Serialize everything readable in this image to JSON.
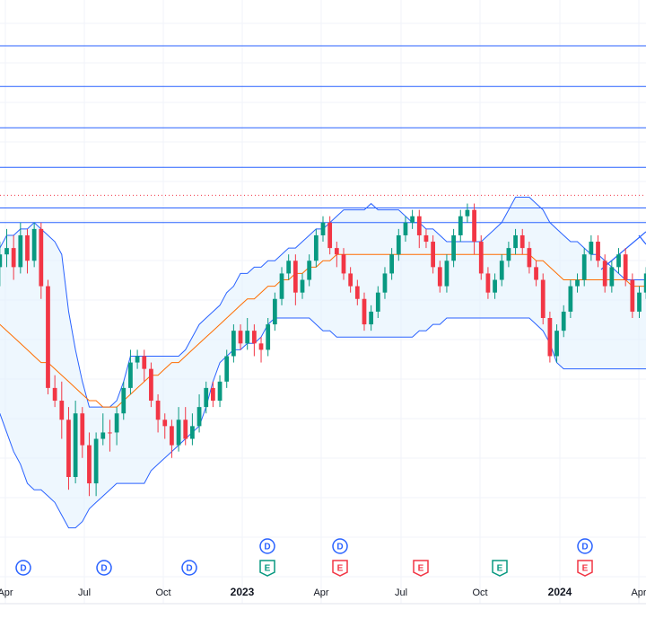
{
  "colors": {
    "up": "#089981",
    "down": "#f23645",
    "band_line": "#2962ff",
    "band_fill": "#e3f2fd",
    "basis": "#ff6d00",
    "level_line": "#2962ff",
    "dotted_level": "#f23645",
    "grid": "#f0f3fa",
    "text": "#131722",
    "dividend": "#2962ff",
    "earnings_beat": "#089981",
    "earnings_miss": "#f23645"
  },
  "chart_data": {
    "type": "candlestick",
    "interval": "weekly",
    "x_axis_labels": [
      "Apr",
      "Jul",
      "Oct",
      "2023",
      "Apr",
      "Jul",
      "Oct",
      "2024",
      "Apr"
    ],
    "bold_labels": [
      "2023",
      "2024"
    ],
    "horizontal_levels": [
      0.072,
      0.136,
      0.201,
      0.263,
      0.327,
      0.35
    ],
    "dotted_level": 0.307,
    "ohlc_note": "values in relative units (0 = top of plot, 1 = bottom)",
    "ohlc": [
      [
        0.42,
        0.4,
        0.45,
        0.38
      ],
      [
        0.4,
        0.39,
        0.42,
        0.36
      ],
      [
        0.39,
        0.42,
        0.44,
        0.37
      ],
      [
        0.42,
        0.37,
        0.43,
        0.35
      ],
      [
        0.37,
        0.41,
        0.43,
        0.36
      ],
      [
        0.41,
        0.36,
        0.42,
        0.35
      ],
      [
        0.36,
        0.45,
        0.47,
        0.35
      ],
      [
        0.45,
        0.61,
        0.62,
        0.44
      ],
      [
        0.61,
        0.63,
        0.64,
        0.59
      ],
      [
        0.63,
        0.66,
        0.69,
        0.6
      ],
      [
        0.66,
        0.75,
        0.77,
        0.64
      ],
      [
        0.75,
        0.65,
        0.76,
        0.63
      ],
      [
        0.65,
        0.7,
        0.72,
        0.64
      ],
      [
        0.7,
        0.76,
        0.78,
        0.68
      ],
      [
        0.76,
        0.69,
        0.78,
        0.68
      ],
      [
        0.69,
        0.68,
        0.7,
        0.65
      ],
      [
        0.68,
        0.68,
        0.71,
        0.66
      ],
      [
        0.68,
        0.65,
        0.7,
        0.64
      ],
      [
        0.65,
        0.61,
        0.66,
        0.6
      ],
      [
        0.61,
        0.57,
        0.62,
        0.55
      ],
      [
        0.57,
        0.56,
        0.58,
        0.55
      ],
      [
        0.56,
        0.58,
        0.6,
        0.55
      ],
      [
        0.58,
        0.63,
        0.64,
        0.57
      ],
      [
        0.63,
        0.66,
        0.68,
        0.62
      ],
      [
        0.66,
        0.67,
        0.69,
        0.65
      ],
      [
        0.67,
        0.7,
        0.72,
        0.66
      ],
      [
        0.7,
        0.66,
        0.71,
        0.64
      ],
      [
        0.66,
        0.69,
        0.7,
        0.64
      ],
      [
        0.69,
        0.67,
        0.7,
        0.65
      ],
      [
        0.67,
        0.64,
        0.68,
        0.62
      ],
      [
        0.64,
        0.61,
        0.65,
        0.6
      ],
      [
        0.61,
        0.63,
        0.64,
        0.6
      ],
      [
        0.63,
        0.6,
        0.64,
        0.59
      ],
      [
        0.6,
        0.56,
        0.61,
        0.55
      ],
      [
        0.56,
        0.52,
        0.57,
        0.51
      ],
      [
        0.52,
        0.54,
        0.55,
        0.51
      ],
      [
        0.54,
        0.52,
        0.55,
        0.5
      ],
      [
        0.52,
        0.54,
        0.56,
        0.51
      ],
      [
        0.54,
        0.55,
        0.57,
        0.53
      ],
      [
        0.55,
        0.51,
        0.56,
        0.5
      ],
      [
        0.51,
        0.47,
        0.52,
        0.46
      ],
      [
        0.47,
        0.43,
        0.48,
        0.42
      ],
      [
        0.43,
        0.41,
        0.44,
        0.4
      ],
      [
        0.41,
        0.46,
        0.48,
        0.4
      ],
      [
        0.46,
        0.44,
        0.47,
        0.43
      ],
      [
        0.44,
        0.41,
        0.45,
        0.4
      ],
      [
        0.41,
        0.37,
        0.42,
        0.36
      ],
      [
        0.37,
        0.35,
        0.38,
        0.34
      ],
      [
        0.35,
        0.39,
        0.4,
        0.34
      ],
      [
        0.39,
        0.4,
        0.42,
        0.38
      ],
      [
        0.4,
        0.43,
        0.44,
        0.39
      ],
      [
        0.43,
        0.45,
        0.46,
        0.42
      ],
      [
        0.45,
        0.47,
        0.48,
        0.44
      ],
      [
        0.47,
        0.51,
        0.52,
        0.46
      ],
      [
        0.51,
        0.49,
        0.52,
        0.48
      ],
      [
        0.49,
        0.46,
        0.5,
        0.45
      ],
      [
        0.46,
        0.43,
        0.47,
        0.42
      ],
      [
        0.43,
        0.4,
        0.44,
        0.39
      ],
      [
        0.4,
        0.37,
        0.41,
        0.36
      ],
      [
        0.37,
        0.35,
        0.38,
        0.34
      ],
      [
        0.35,
        0.34,
        0.36,
        0.33
      ],
      [
        0.34,
        0.37,
        0.39,
        0.33
      ],
      [
        0.37,
        0.38,
        0.39,
        0.36
      ],
      [
        0.38,
        0.42,
        0.43,
        0.37
      ],
      [
        0.42,
        0.45,
        0.46,
        0.41
      ],
      [
        0.45,
        0.41,
        0.46,
        0.4
      ],
      [
        0.41,
        0.37,
        0.42,
        0.36
      ],
      [
        0.37,
        0.34,
        0.38,
        0.33
      ],
      [
        0.34,
        0.33,
        0.35,
        0.32
      ],
      [
        0.33,
        0.38,
        0.4,
        0.32
      ],
      [
        0.38,
        0.43,
        0.44,
        0.37
      ],
      [
        0.43,
        0.46,
        0.47,
        0.42
      ],
      [
        0.46,
        0.44,
        0.47,
        0.43
      ],
      [
        0.44,
        0.41,
        0.45,
        0.4
      ],
      [
        0.41,
        0.39,
        0.42,
        0.38
      ],
      [
        0.39,
        0.37,
        0.4,
        0.36
      ],
      [
        0.37,
        0.39,
        0.4,
        0.36
      ],
      [
        0.39,
        0.42,
        0.43,
        0.38
      ],
      [
        0.42,
        0.44,
        0.45,
        0.41
      ],
      [
        0.44,
        0.5,
        0.51,
        0.43
      ],
      [
        0.5,
        0.56,
        0.57,
        0.49
      ],
      [
        0.56,
        0.52,
        0.57,
        0.51
      ],
      [
        0.52,
        0.49,
        0.53,
        0.48
      ],
      [
        0.49,
        0.45,
        0.5,
        0.44
      ],
      [
        0.45,
        0.44,
        0.46,
        0.43
      ],
      [
        0.44,
        0.4,
        0.45,
        0.39
      ],
      [
        0.4,
        0.38,
        0.41,
        0.37
      ],
      [
        0.38,
        0.41,
        0.42,
        0.37
      ],
      [
        0.41,
        0.45,
        0.46,
        0.4
      ],
      [
        0.45,
        0.42,
        0.46,
        0.41
      ],
      [
        0.42,
        0.4,
        0.43,
        0.39
      ],
      [
        0.4,
        0.44,
        0.45,
        0.39
      ],
      [
        0.44,
        0.49,
        0.5,
        0.43
      ],
      [
        0.49,
        0.46,
        0.5,
        0.45
      ],
      [
        0.46,
        0.43,
        0.47,
        0.42
      ]
    ],
    "upper_band": [
      0.39,
      0.37,
      0.37,
      0.36,
      0.36,
      0.35,
      0.36,
      0.37,
      0.38,
      0.4,
      0.49,
      0.55,
      0.6,
      0.64,
      0.64,
      0.64,
      0.64,
      0.63,
      0.6,
      0.56,
      0.56,
      0.56,
      0.56,
      0.56,
      0.56,
      0.56,
      0.56,
      0.55,
      0.53,
      0.51,
      0.5,
      0.49,
      0.48,
      0.46,
      0.45,
      0.43,
      0.43,
      0.42,
      0.42,
      0.41,
      0.41,
      0.4,
      0.39,
      0.39,
      0.38,
      0.37,
      0.36,
      0.36,
      0.35,
      0.34,
      0.33,
      0.33,
      0.33,
      0.33,
      0.32,
      0.33,
      0.33,
      0.33,
      0.33,
      0.34,
      0.35,
      0.35,
      0.36,
      0.36,
      0.37,
      0.38,
      0.38,
      0.38,
      0.38,
      0.38,
      0.38,
      0.37,
      0.36,
      0.35,
      0.33,
      0.31,
      0.31,
      0.31,
      0.32,
      0.33,
      0.35,
      0.36,
      0.37,
      0.38,
      0.38,
      0.39,
      0.4,
      0.4,
      0.41,
      0.42,
      0.43,
      0.44,
      0.44,
      0.44,
      0.44
    ],
    "lower_band": [
      0.65,
      0.68,
      0.71,
      0.73,
      0.76,
      0.77,
      0.77,
      0.78,
      0.79,
      0.81,
      0.83,
      0.83,
      0.82,
      0.8,
      0.79,
      0.78,
      0.77,
      0.76,
      0.76,
      0.76,
      0.76,
      0.76,
      0.74,
      0.73,
      0.72,
      0.71,
      0.7,
      0.69,
      0.68,
      0.67,
      0.64,
      0.6,
      0.57,
      0.56,
      0.55,
      0.55,
      0.54,
      0.54,
      0.53,
      0.51,
      0.5,
      0.5,
      0.5,
      0.5,
      0.5,
      0.5,
      0.51,
      0.52,
      0.52,
      0.53,
      0.53,
      0.53,
      0.53,
      0.53,
      0.53,
      0.53,
      0.53,
      0.53,
      0.53,
      0.53,
      0.53,
      0.52,
      0.52,
      0.51,
      0.51,
      0.5,
      0.5,
      0.5,
      0.5,
      0.5,
      0.5,
      0.5,
      0.5,
      0.5,
      0.5,
      0.5,
      0.5,
      0.5,
      0.51,
      0.52,
      0.54,
      0.57,
      0.58,
      0.58,
      0.58,
      0.58,
      0.58,
      0.58,
      0.58,
      0.58,
      0.58,
      0.58,
      0.58,
      0.58,
      0.58
    ],
    "basis": [
      0.51,
      0.52,
      0.53,
      0.54,
      0.55,
      0.56,
      0.57,
      0.57,
      0.58,
      0.59,
      0.6,
      0.61,
      0.62,
      0.63,
      0.63,
      0.64,
      0.64,
      0.64,
      0.63,
      0.62,
      0.61,
      0.6,
      0.59,
      0.59,
      0.58,
      0.57,
      0.57,
      0.56,
      0.55,
      0.54,
      0.53,
      0.52,
      0.51,
      0.5,
      0.49,
      0.48,
      0.47,
      0.47,
      0.46,
      0.45,
      0.45,
      0.44,
      0.44,
      0.43,
      0.43,
      0.42,
      0.42,
      0.41,
      0.41,
      0.4,
      0.4,
      0.4,
      0.4,
      0.4,
      0.4,
      0.4,
      0.4,
      0.4,
      0.4,
      0.4,
      0.4,
      0.4,
      0.4,
      0.4,
      0.4,
      0.4,
      0.4,
      0.4,
      0.4,
      0.4,
      0.4,
      0.4,
      0.4,
      0.4,
      0.4,
      0.4,
      0.4,
      0.4,
      0.41,
      0.41,
      0.42,
      0.43,
      0.44,
      0.44,
      0.44,
      0.44,
      0.44,
      0.44,
      0.44,
      0.44,
      0.44,
      0.44,
      0.45,
      0.45,
      0.45
    ],
    "event_markers": [
      {
        "type": "D",
        "row": 2,
        "label": "D"
      },
      {
        "type": "D",
        "row": 2,
        "label": "D"
      },
      {
        "type": "D",
        "row": 2,
        "label": "D"
      },
      {
        "type": "D",
        "row": 1,
        "label": "D"
      },
      {
        "type": "E",
        "row": 2,
        "label": "E",
        "result": "beat"
      },
      {
        "type": "D",
        "row": 1,
        "label": "D"
      },
      {
        "type": "E",
        "row": 2,
        "label": "E",
        "result": "miss"
      },
      {
        "type": "E",
        "row": 2,
        "label": "E",
        "result": "miss"
      },
      {
        "type": "E",
        "row": 2,
        "label": "E",
        "result": "beat"
      },
      {
        "type": "D",
        "row": 1,
        "label": "D"
      },
      {
        "type": "E",
        "row": 2,
        "label": "E",
        "result": "miss"
      }
    ]
  }
}
